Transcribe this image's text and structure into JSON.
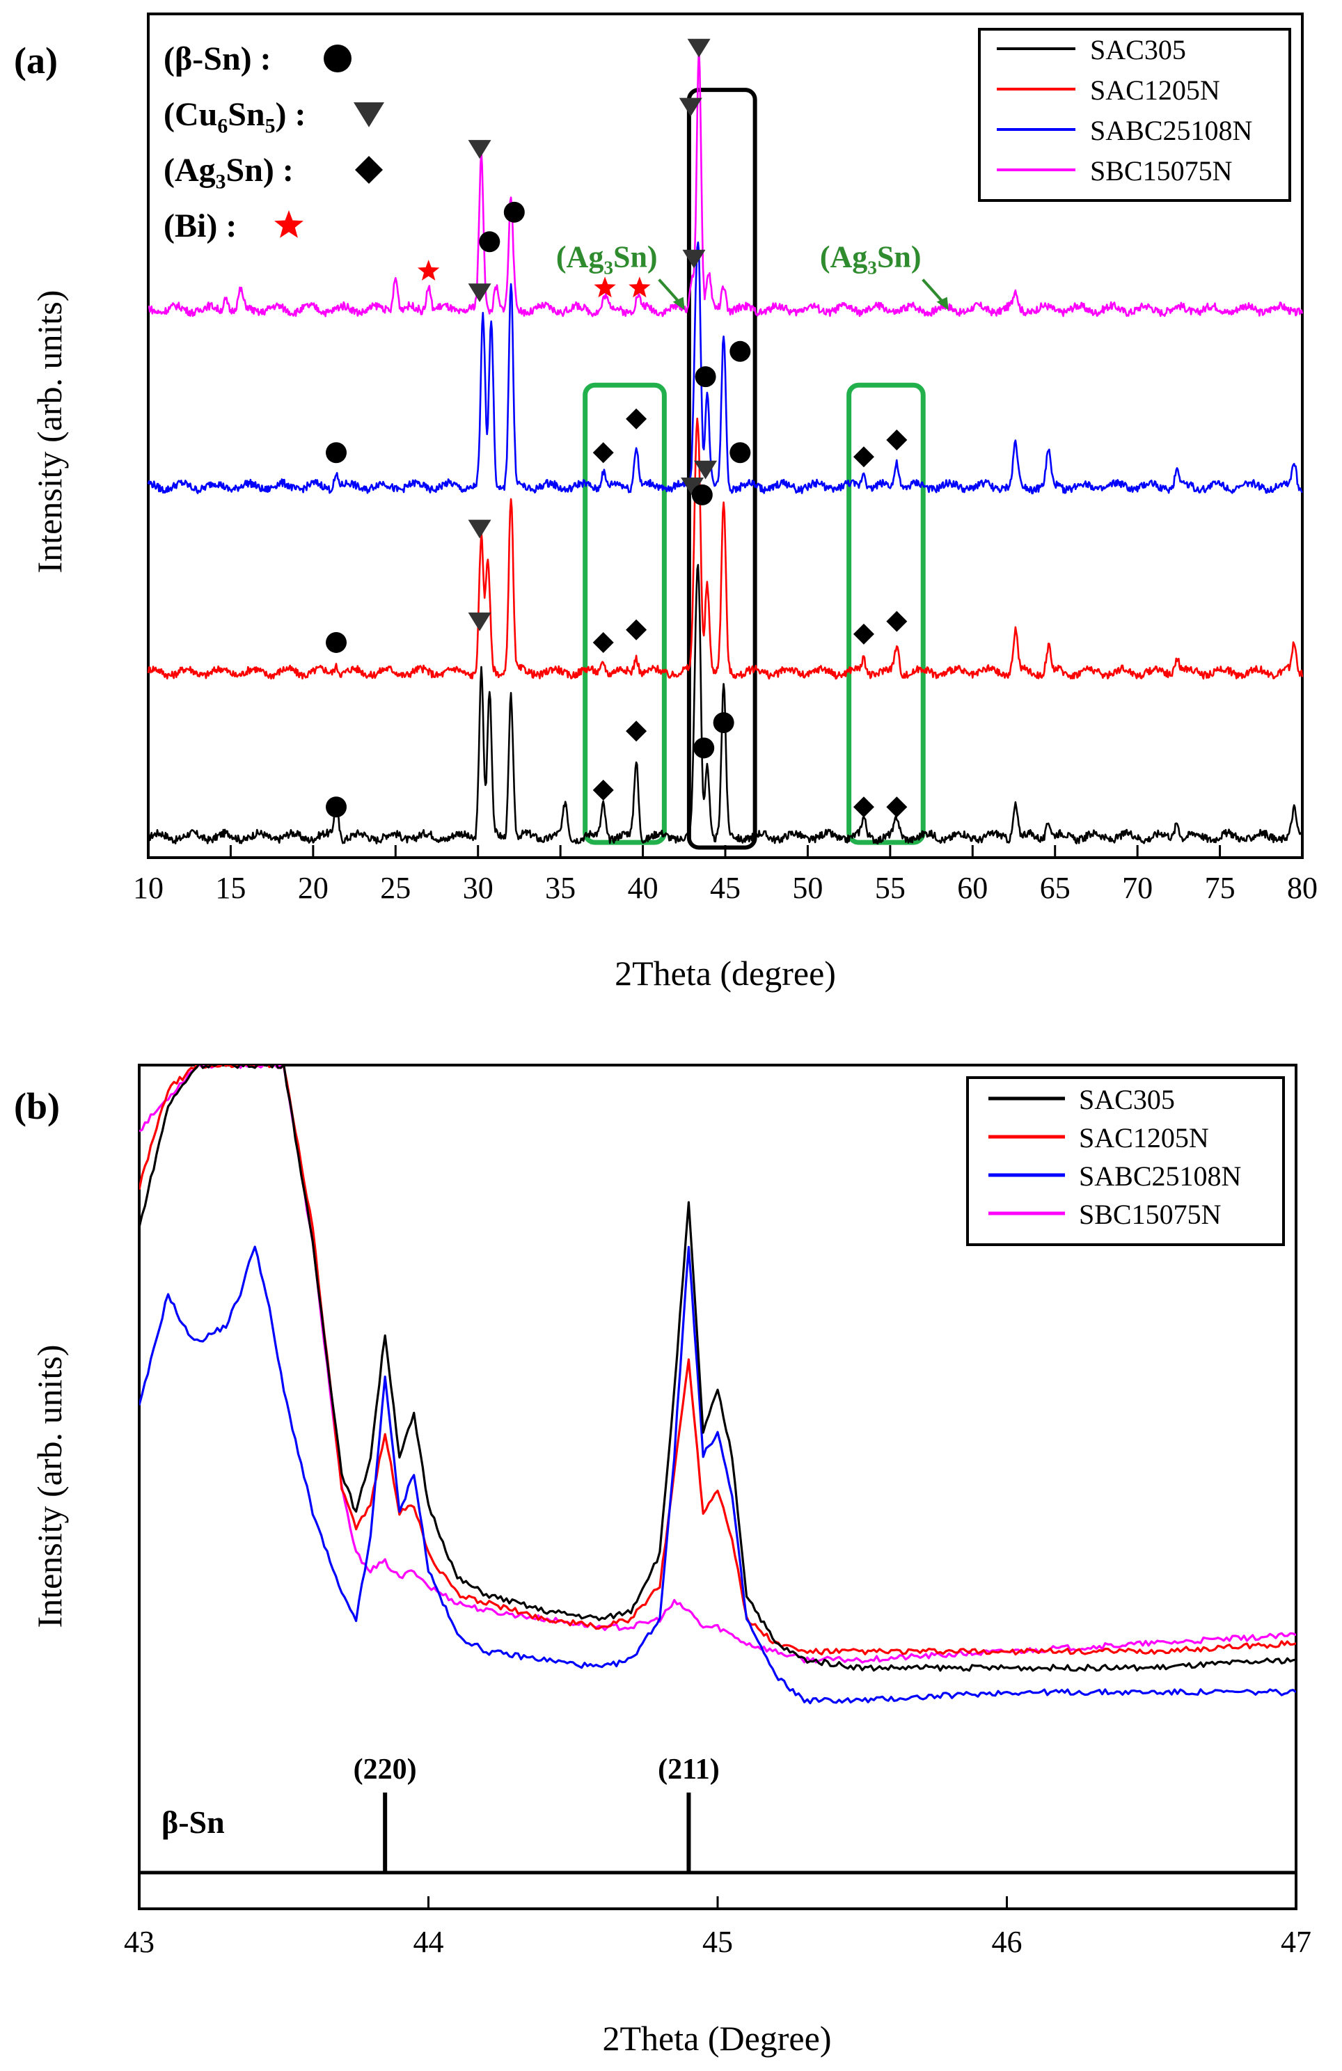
{
  "figure": {
    "panel_a_label": "(a)",
    "panel_b_label": "(b)"
  },
  "colors": {
    "SAC305": "#000000",
    "SAC1205N": "#ff0000",
    "SABC25108N": "#0000ff",
    "SBC15075N": "#ff00ff",
    "box_black": "#000000",
    "box_green": "#22b04c",
    "annot_green": "#2e8b2e",
    "marker_dark": "#333333",
    "star_red": "#ff0000"
  },
  "chart_data": [
    {
      "type": "line",
      "panel": "(a)",
      "xlabel": "2Theta (degree)",
      "ylabel": "Intensity (arb. units)",
      "xlim": [
        10,
        80
      ],
      "ylim": [
        0,
        100
      ],
      "xticks": [
        10,
        15,
        20,
        25,
        30,
        35,
        40,
        45,
        50,
        55,
        60,
        65,
        70,
        75,
        80
      ],
      "legend": {
        "position": "top-right",
        "entries": [
          "SAC305",
          "SAC1205N",
          "SABC25108N",
          "SBC15075N"
        ]
      },
      "phase_legend": [
        {
          "label": "(β-Sn) :",
          "symbol": "circle"
        },
        {
          "label": "(Cu6Sn5) :",
          "symbol": "triangle"
        },
        {
          "label": "(Ag3Sn) :",
          "symbol": "diamond"
        },
        {
          "label": "(Bi) :",
          "symbol": "star"
        }
      ],
      "annotations": [
        {
          "text": "(Ag3Sn)",
          "x": 39.5
        },
        {
          "text": "(Ag3Sn)",
          "x": 55.5
        }
      ],
      "highlight_boxes": [
        {
          "x_range": [
            42.8,
            46.8
          ],
          "color": "black"
        },
        {
          "x_range": [
            36.5,
            41.3
          ],
          "color": "green"
        },
        {
          "x_range": [
            52.5,
            57.0
          ],
          "color": "green"
        }
      ],
      "series": [
        {
          "name": "SAC305",
          "baseline": 2.5,
          "peaks": [
            [
              21.4,
              4
            ],
            [
              30.2,
              20
            ],
            [
              30.7,
              17
            ],
            [
              32.0,
              17
            ],
            [
              35.3,
              4
            ],
            [
              37.6,
              4
            ],
            [
              39.6,
              9
            ],
            [
              43.2,
              17
            ],
            [
              43.4,
              25
            ],
            [
              43.9,
              9
            ],
            [
              44.9,
              18
            ],
            [
              53.4,
              2
            ],
            [
              55.4,
              2
            ],
            [
              62.6,
              4
            ],
            [
              64.6,
              2
            ],
            [
              72.4,
              2
            ],
            [
              79.5,
              3
            ]
          ],
          "markers": [
            {
              "x": 21.4,
              "y": 6,
              "symbol": "circle"
            },
            {
              "x": 37.6,
              "y": 8,
              "symbol": "diamond"
            },
            {
              "x": 39.6,
              "y": 15,
              "symbol": "diamond"
            },
            {
              "x": 43.7,
              "y": 13,
              "symbol": "circle"
            },
            {
              "x": 44.9,
              "y": 16,
              "symbol": "circle"
            },
            {
              "x": 53.4,
              "y": 6,
              "symbol": "diamond"
            },
            {
              "x": 55.4,
              "y": 6,
              "symbol": "diamond"
            }
          ]
        },
        {
          "name": "SAC1205N",
          "baseline": 22,
          "peaks": [
            [
              21.4,
              1
            ],
            [
              30.2,
              16
            ],
            [
              30.6,
              13
            ],
            [
              32.0,
              21
            ],
            [
              37.6,
              1.5
            ],
            [
              39.6,
              2
            ],
            [
              43.2,
              19
            ],
            [
              43.4,
              21
            ],
            [
              43.9,
              11
            ],
            [
              44.9,
              20
            ],
            [
              53.4,
              1.5
            ],
            [
              55.4,
              3
            ],
            [
              62.6,
              5
            ],
            [
              64.6,
              3
            ],
            [
              72.4,
              2
            ],
            [
              79.5,
              3
            ]
          ],
          "markers": [
            {
              "x": 21.4,
              "y": 25.5,
              "symbol": "circle"
            },
            {
              "x": 30.1,
              "y": 28,
              "symbol": "triangle"
            },
            {
              "x": 30.1,
              "y": 39,
              "symbol": "triangle"
            },
            {
              "x": 37.6,
              "y": 25.5,
              "symbol": "diamond"
            },
            {
              "x": 39.6,
              "y": 27,
              "symbol": "diamond"
            },
            {
              "x": 43.0,
              "y": 44,
              "symbol": "triangle"
            },
            {
              "x": 43.6,
              "y": 43,
              "symbol": "circle"
            },
            {
              "x": 43.8,
              "y": 46,
              "symbol": "triangle"
            },
            {
              "x": 45.9,
              "y": 48,
              "symbol": "circle"
            },
            {
              "x": 53.4,
              "y": 26.5,
              "symbol": "diamond"
            },
            {
              "x": 55.4,
              "y": 28,
              "symbol": "diamond"
            }
          ]
        },
        {
          "name": "SABC25108N",
          "baseline": 44,
          "peaks": [
            [
              21.4,
              1.5
            ],
            [
              30.3,
              20
            ],
            [
              30.8,
              20
            ],
            [
              32.0,
              24
            ],
            [
              37.6,
              2
            ],
            [
              39.6,
              5
            ],
            [
              43.2,
              16
            ],
            [
              43.4,
              23
            ],
            [
              43.9,
              11
            ],
            [
              44.9,
              18
            ],
            [
              53.4,
              2
            ],
            [
              55.4,
              3
            ],
            [
              62.6,
              5
            ],
            [
              64.6,
              4
            ],
            [
              72.4,
              2
            ],
            [
              79.5,
              3
            ]
          ],
          "markers": [
            {
              "x": 21.4,
              "y": 48,
              "symbol": "circle"
            },
            {
              "x": 37.6,
              "y": 48,
              "symbol": "diamond"
            },
            {
              "x": 39.6,
              "y": 52,
              "symbol": "diamond"
            },
            {
              "x": 43.8,
              "y": 57,
              "symbol": "circle"
            },
            {
              "x": 45.9,
              "y": 60,
              "symbol": "circle"
            },
            {
              "x": 53.4,
              "y": 47.5,
              "symbol": "diamond"
            },
            {
              "x": 55.4,
              "y": 49.5,
              "symbol": "diamond"
            }
          ]
        },
        {
          "name": "SBC15075N",
          "baseline": 65,
          "peaks": [
            [
              14.7,
              1.5
            ],
            [
              15.6,
              2
            ],
            [
              25.0,
              4
            ],
            [
              27.0,
              3
            ],
            [
              30.2,
              18
            ],
            [
              31.1,
              3
            ],
            [
              32.0,
              13
            ],
            [
              37.7,
              1.5
            ],
            [
              39.7,
              1.5
            ],
            [
              43.0,
              4
            ],
            [
              43.4,
              31
            ],
            [
              44.0,
              4
            ],
            [
              44.9,
              3
            ],
            [
              62.6,
              2
            ]
          ],
          "markers": [
            {
              "x": 27.0,
              "y": 69.5,
              "symbol": "star"
            },
            {
              "x": 30.1,
              "y": 67,
              "symbol": "triangle"
            },
            {
              "x": 30.1,
              "y": 84,
              "symbol": "triangle"
            },
            {
              "x": 30.7,
              "y": 73,
              "symbol": "circle"
            },
            {
              "x": 32.2,
              "y": 76.5,
              "symbol": "circle"
            },
            {
              "x": 37.7,
              "y": 67.5,
              "symbol": "star"
            },
            {
              "x": 39.8,
              "y": 67.5,
              "symbol": "star"
            },
            {
              "x": 43.1,
              "y": 71,
              "symbol": "triangle"
            },
            {
              "x": 42.9,
              "y": 89,
              "symbol": "triangle"
            },
            {
              "x": 43.4,
              "y": 96,
              "symbol": "triangle"
            }
          ]
        }
      ]
    },
    {
      "type": "line",
      "panel": "(b)",
      "xlabel": "2Theta (Degree)",
      "ylabel": "Intensity (arb. units)",
      "xlim": [
        43,
        47
      ],
      "ylim": [
        0,
        100
      ],
      "xticks": [
        43,
        44,
        45,
        46,
        47
      ],
      "legend": {
        "position": "top-right",
        "entries": [
          "SAC305",
          "SAC1205N",
          "SABC25108N",
          "SBC15075N"
        ]
      },
      "reference": {
        "phase": "β-Sn",
        "peaks": [
          {
            "x": 43.85,
            "label": "(220)"
          },
          {
            "x": 44.9,
            "label": "(211)"
          }
        ]
      },
      "series": [
        {
          "name": "SAC305",
          "x": [
            43.0,
            43.1,
            43.2,
            43.3,
            43.4,
            43.5,
            43.6,
            43.7,
            43.75,
            43.8,
            43.85,
            43.9,
            43.95,
            44.0,
            44.1,
            44.2,
            44.4,
            44.6,
            44.7,
            44.8,
            44.85,
            44.9,
            44.95,
            45.0,
            45.05,
            45.1,
            45.2,
            45.3,
            45.5,
            46.0,
            46.5,
            47.0
          ],
          "y": [
            80,
            95,
            100,
            100,
            100,
            100,
            78,
            50,
            45,
            52,
            67,
            52,
            57,
            46,
            37,
            35,
            33,
            32,
            33,
            40,
            60,
            83,
            55,
            60,
            52,
            35,
            29,
            27,
            26,
            26,
            26,
            27
          ]
        },
        {
          "name": "SAC1205N",
          "x": [
            43.0,
            43.1,
            43.2,
            43.3,
            43.4,
            43.5,
            43.6,
            43.7,
            43.75,
            43.8,
            43.85,
            43.9,
            43.95,
            44.0,
            44.1,
            44.2,
            44.4,
            44.6,
            44.7,
            44.8,
            44.85,
            44.9,
            44.95,
            45.0,
            45.05,
            45.1,
            45.2,
            45.3,
            45.5,
            46.0,
            46.5,
            47.0
          ],
          "y": [
            85,
            97,
            100,
            100,
            100,
            100,
            80,
            48,
            43,
            46,
            55,
            45,
            46,
            40,
            35,
            34,
            32,
            31,
            32,
            36,
            50,
            64,
            45,
            48,
            42,
            32,
            29,
            28,
            28,
            28,
            28,
            29
          ]
        },
        {
          "name": "SABC25108N",
          "x": [
            43.0,
            43.05,
            43.1,
            43.15,
            43.2,
            43.25,
            43.3,
            43.35,
            43.4,
            43.45,
            43.5,
            43.6,
            43.7,
            43.75,
            43.8,
            43.85,
            43.9,
            43.95,
            44.0,
            44.1,
            44.2,
            44.4,
            44.6,
            44.7,
            44.8,
            44.85,
            44.9,
            44.95,
            45.0,
            45.05,
            45.1,
            45.2,
            45.3,
            45.5,
            46.0,
            46.5,
            47.0
          ],
          "y": [
            58,
            65,
            72,
            68,
            66,
            67,
            68,
            72,
            78,
            70,
            60,
            45,
            35,
            32,
            42,
            62,
            45,
            50,
            38,
            30,
            28,
            27,
            26,
            27,
            32,
            52,
            78,
            52,
            55,
            47,
            32,
            25,
            22,
            22,
            23,
            23,
            23
          ]
        },
        {
          "name": "SBC15075N",
          "x": [
            43.0,
            43.2,
            43.4,
            43.5,
            43.6,
            43.7,
            43.75,
            43.8,
            43.85,
            43.9,
            43.95,
            44.0,
            44.1,
            44.2,
            44.4,
            44.6,
            44.7,
            44.8,
            44.85,
            44.9,
            44.95,
            45.0,
            45.1,
            45.2,
            45.3,
            45.5,
            46.0,
            46.5,
            47.0
          ],
          "y": [
            92,
            100,
            100,
            100,
            78,
            48,
            40,
            38,
            39,
            37,
            38,
            36,
            34,
            33,
            32,
            31,
            31,
            32,
            34,
            33,
            31,
            31,
            29,
            28,
            27,
            27,
            28,
            29,
            30
          ]
        }
      ]
    }
  ]
}
